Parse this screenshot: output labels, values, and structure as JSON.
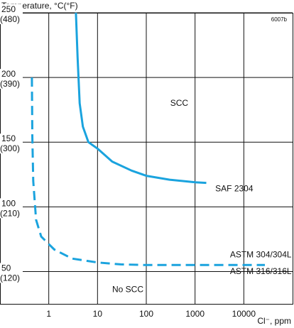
{
  "chart_data": {
    "type": "line",
    "ylabel": "Temperature, °C(°F)",
    "xlabel": "Cl⁻, ppm",
    "figure_code": "6007b",
    "x_scale": "log",
    "xlim": [
      0.1,
      100000
    ],
    "ylim": [
      25,
      250
    ],
    "grid": true,
    "x_ticks": [
      {
        "value": 1,
        "label": "1"
      },
      {
        "value": 10,
        "label": "10"
      },
      {
        "value": 100,
        "label": "100"
      },
      {
        "value": 1000,
        "label": "1000"
      },
      {
        "value": 10000,
        "label": "10000"
      }
    ],
    "y_ticks": [
      {
        "value": 250,
        "label": "250",
        "sub": "(480)"
      },
      {
        "value": 200,
        "label": "200",
        "sub": "(390)"
      },
      {
        "value": 150,
        "label": "150",
        "sub": "(300)"
      },
      {
        "value": 100,
        "label": "100",
        "sub": "(210)"
      },
      {
        "value": 50,
        "label": "50",
        "sub": "(120)"
      }
    ],
    "series": [
      {
        "name": "SAF 2304",
        "color": "#1aa3de",
        "style": "solid",
        "points": [
          [
            3.6,
            250
          ],
          [
            3.9,
            215
          ],
          [
            4.3,
            180
          ],
          [
            5,
            162
          ],
          [
            6.5,
            150
          ],
          [
            10,
            145
          ],
          [
            20,
            135
          ],
          [
            50,
            128
          ],
          [
            100,
            124
          ],
          [
            300,
            121
          ],
          [
            1000,
            119
          ],
          [
            1700,
            118.5
          ]
        ]
      },
      {
        "name": "ASTM 304/304L ASTM 316/316L",
        "color": "#1aa3de",
        "style": "dashed",
        "points": [
          [
            0.45,
            200
          ],
          [
            0.46,
            155
          ],
          [
            0.48,
            120
          ],
          [
            0.55,
            90
          ],
          [
            0.7,
            77
          ],
          [
            1.3,
            67
          ],
          [
            3,
            60
          ],
          [
            10,
            57
          ],
          [
            30,
            55.5
          ],
          [
            100,
            55
          ],
          [
            1000,
            55
          ],
          [
            10000,
            55
          ],
          [
            27000,
            55
          ]
        ]
      }
    ],
    "annotations": [
      {
        "text": "SCC",
        "x": 310,
        "y": 178
      },
      {
        "text": "SAF 2304",
        "x": 2600,
        "y": 112
      },
      {
        "text": "ASTM 304/304L",
        "x": 5200,
        "y": 61
      },
      {
        "text": "ASTM 316/316L",
        "x": 5200,
        "y": 48
      },
      {
        "text": "No SCC",
        "x": 20,
        "y": 34
      }
    ]
  }
}
